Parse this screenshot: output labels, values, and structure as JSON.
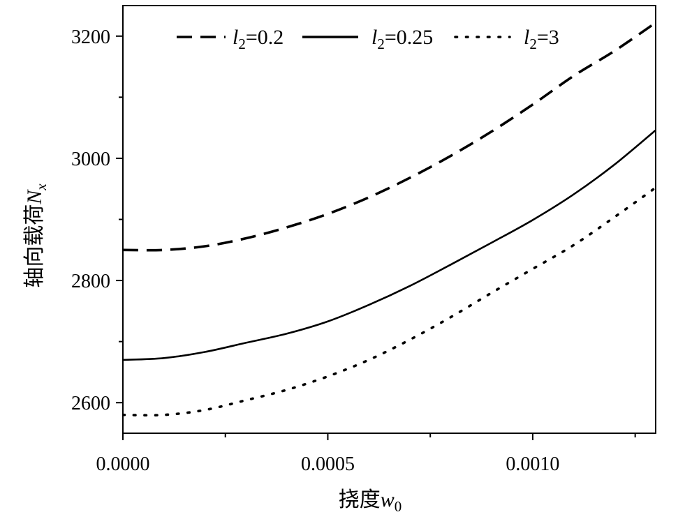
{
  "chart_data": {
    "type": "line",
    "title": "",
    "xlabel": {
      "prefix": "挠度",
      "symbol": "w",
      "sub": "0"
    },
    "ylabel": {
      "prefix": "轴向载荷",
      "symbol": "N",
      "sub": "x"
    },
    "xlim": [
      0,
      0.0013
    ],
    "ylim": [
      2550,
      3250
    ],
    "xticks": [
      0,
      0.0005,
      0.001
    ],
    "xtick_labels": [
      "0.0000",
      "0.0005",
      "0.0010"
    ],
    "xticks_minor": [
      0.00025,
      0.00075,
      0.00125
    ],
    "yticks": [
      2600,
      2800,
      3000,
      3200
    ],
    "ytick_labels": [
      "2600",
      "2800",
      "3000",
      "3200"
    ],
    "yticks_minor": [
      2700,
      2900,
      3100
    ],
    "grid": false,
    "legend_position": "top",
    "series": [
      {
        "name_symbol": "l",
        "name_sub": "2",
        "name_value": "=0.2",
        "style": "dashed",
        "x": [
          0,
          0.0001,
          0.0002,
          0.0003,
          0.0004,
          0.0005,
          0.0006,
          0.0007,
          0.0008,
          0.0009,
          0.001,
          0.0011,
          0.0012,
          0.0013
        ],
        "y": [
          2850,
          2850,
          2856,
          2869,
          2887,
          2909,
          2936,
          2968,
          3004,
          3044,
          3088,
          3135,
          3176,
          3222
        ]
      },
      {
        "name_symbol": "l",
        "name_sub": "2",
        "name_value": "=0.25",
        "style": "solid",
        "x": [
          0,
          0.0001,
          0.0002,
          0.0003,
          0.0004,
          0.0005,
          0.0006,
          0.0007,
          0.0008,
          0.0009,
          0.001,
          0.0011,
          0.0012,
          0.0013
        ],
        "y": [
          2670,
          2673,
          2683,
          2698,
          2713,
          2733,
          2760,
          2791,
          2826,
          2862,
          2899,
          2941,
          2990,
          3046
        ]
      },
      {
        "name_symbol": "l",
        "name_sub": "2",
        "name_value": "=3",
        "style": "dotted",
        "x": [
          0,
          0.0001,
          0.0002,
          0.0003,
          0.0004,
          0.0005,
          0.0006,
          0.0007,
          0.0008,
          0.0009,
          0.001,
          0.0011,
          0.0012,
          0.0013
        ],
        "y": [
          2580,
          2580,
          2588,
          2604,
          2621,
          2643,
          2670,
          2703,
          2740,
          2780,
          2819,
          2858,
          2904,
          2952
        ]
      }
    ]
  }
}
